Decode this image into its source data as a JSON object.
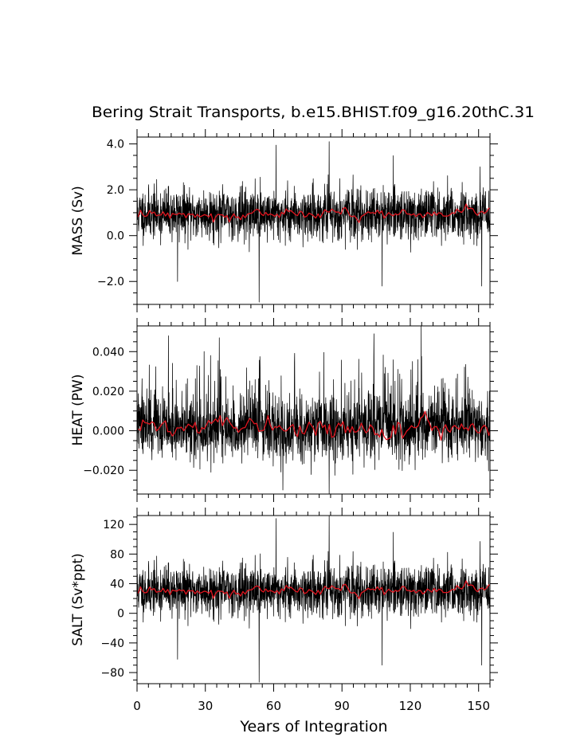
{
  "title": "Bering Strait Transports, b.e15.BHIST.f09_g16.20thC.31",
  "colors": {
    "monthly": "#000000",
    "annual": "#e0141e"
  },
  "chart_data": [
    {
      "type": "line",
      "ylabel": "MASS (Sv)",
      "x_axis": {
        "range": [
          0,
          155
        ],
        "ticks": [
          0,
          30,
          60,
          90,
          120,
          150
        ],
        "minor_step": 5
      },
      "ylim": [
        -3.0,
        4.3
      ],
      "yticks": [
        -2.0,
        0.0,
        2.0,
        4.0
      ],
      "ytick_labels": [
        "−2.0",
        "0.0",
        "2.0",
        "4.0"
      ],
      "ymajor_step": 2.0,
      "yminor_step": 0.5,
      "series": [
        {
          "style": "monthly",
          "mean": 0.95,
          "noise_sd": 0.55,
          "seed": 11,
          "spikes": [
            [
              61.0,
              3.95
            ],
            [
              84.4,
              4.1
            ],
            [
              53.6,
              -2.9
            ],
            [
              17.8,
              -2.0
            ],
            [
              150.6,
              3.0
            ],
            [
              151.4,
              -2.2
            ],
            [
              107.6,
              -2.2
            ]
          ]
        },
        {
          "style": "annual",
          "mean": 0.95,
          "noise_sd": 0.14,
          "seed": 12
        }
      ]
    },
    {
      "type": "line",
      "ylabel": "HEAT (PW)",
      "x_axis": {
        "range": [
          0,
          155
        ],
        "ticks": [
          0,
          30,
          60,
          90,
          120,
          150
        ],
        "minor_step": 5
      },
      "ylim": [
        -0.032,
        0.053
      ],
      "yticks": [
        -0.02,
        0.0,
        0.02,
        0.04
      ],
      "ytick_labels": [
        "−0.020",
        "0.000",
        "0.020",
        "0.040"
      ],
      "ymajor_step": 0.02,
      "yminor_step": 0.005,
      "series": [
        {
          "style": "monthly",
          "mean": 0.0015,
          "noise_sd": 0.008,
          "seed": 21,
          "pos_skew": 0.012,
          "spikes": [
            [
              124.8,
              0.053
            ],
            [
              84.4,
              -0.032
            ],
            [
              64.0,
              -0.03
            ],
            [
              13.8,
              0.048
            ],
            [
              104.0,
              0.049
            ]
          ]
        },
        {
          "style": "annual",
          "mean": 0.0015,
          "noise_sd": 0.0025,
          "seed": 22
        }
      ]
    },
    {
      "type": "line",
      "ylabel": "SALT (Sv*ppt)",
      "x_axis": {
        "range": [
          0,
          155
        ],
        "ticks": [
          0,
          30,
          60,
          90,
          120,
          150
        ],
        "minor_step": 5,
        "tick_labels": [
          "0",
          "30",
          "60",
          "90",
          "120",
          "150"
        ]
      },
      "xlabel": "Years of Integration",
      "ylim": [
        -95,
        132
      ],
      "yticks": [
        -80,
        -40,
        0,
        40,
        80,
        120
      ],
      "ytick_labels": [
        "−80",
        "−40",
        "0",
        "40",
        "80",
        "120"
      ],
      "ymajor_step": 20,
      "yminor_step": 10,
      "series": [
        {
          "style": "monthly",
          "mean": 31,
          "noise_sd": 17,
          "seed": 11,
          "spikes": [
            [
              61.0,
              128
            ],
            [
              84.4,
              132
            ],
            [
              53.6,
              -93
            ],
            [
              17.8,
              -62
            ],
            [
              150.6,
              97
            ],
            [
              151.4,
              -70
            ],
            [
              107.6,
              -70
            ]
          ]
        },
        {
          "style": "annual",
          "mean": 31,
          "noise_sd": 4.2,
          "seed": 12
        }
      ]
    }
  ]
}
